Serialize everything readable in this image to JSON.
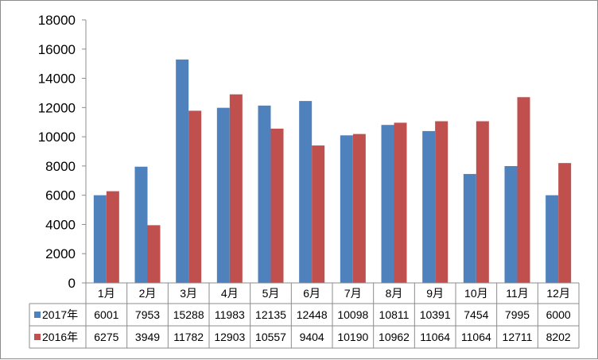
{
  "chart_data": {
    "type": "bar",
    "categories": [
      "1月",
      "2月",
      "3月",
      "4月",
      "5月",
      "6月",
      "7月",
      "8月",
      "9月",
      "10月",
      "11月",
      "12月"
    ],
    "series": [
      {
        "name": "2017年",
        "color": "#4f81bd",
        "values": [
          6001,
          7953,
          15288,
          11983,
          12135,
          12448,
          10098,
          10811,
          10391,
          7454,
          7995,
          6000
        ]
      },
      {
        "name": "2016年",
        "color": "#c0504d",
        "values": [
          6275,
          3949,
          11782,
          12903,
          10557,
          9404,
          10190,
          10962,
          11064,
          11064,
          12711,
          8202
        ]
      }
    ],
    "ylim": [
      0,
      18000
    ],
    "yticks": [
      0,
      2000,
      4000,
      6000,
      8000,
      10000,
      12000,
      14000,
      16000,
      18000
    ],
    "grid": false,
    "legend": "data-table-left"
  }
}
